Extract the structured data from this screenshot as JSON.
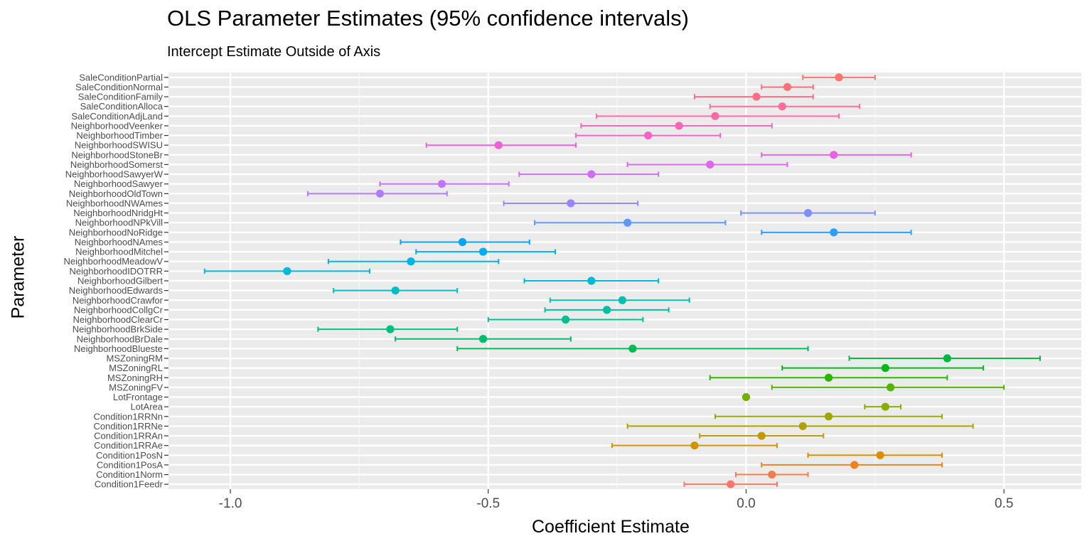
{
  "title": "OLS Parameter Estimates (95% confidence intervals)",
  "subtitle": "Intercept Estimate Outside of Axis",
  "chart_data": {
    "type": "errorbar",
    "title": "OLS Parameter Estimates (95% confidence intervals)",
    "subtitle": "Intercept Estimate Outside of Axis",
    "xlabel": "Coefficient Estimate",
    "ylabel": "Parameter",
    "xlim": [
      -1.12,
      0.65
    ],
    "xticks": [
      -1.0,
      -0.5,
      0.0,
      0.5
    ],
    "xtick_labels": [
      "-1.0",
      "-0.5",
      "0.0",
      "0.5"
    ],
    "grid": true,
    "legend": "none",
    "points": [
      {
        "name": "Condition1Feedr",
        "estimate": -0.03,
        "lower": -0.12,
        "upper": 0.06,
        "color": "#F8766D"
      },
      {
        "name": "Condition1Norm",
        "estimate": 0.05,
        "lower": -0.02,
        "upper": 0.12,
        "color": "#F07E4D"
      },
      {
        "name": "Condition1PosA",
        "estimate": 0.21,
        "lower": 0.03,
        "upper": 0.38,
        "color": "#E7861B"
      },
      {
        "name": "Condition1PosN",
        "estimate": 0.26,
        "lower": 0.12,
        "upper": 0.38,
        "color": "#DB8E00"
      },
      {
        "name": "Condition1RRAe",
        "estimate": -0.1,
        "lower": -0.26,
        "upper": 0.06,
        "color": "#CF9400"
      },
      {
        "name": "Condition1RRAn",
        "estimate": 0.03,
        "lower": -0.09,
        "upper": 0.15,
        "color": "#C09B00"
      },
      {
        "name": "Condition1RRNe",
        "estimate": 0.11,
        "lower": -0.23,
        "upper": 0.44,
        "color": "#AFA100"
      },
      {
        "name": "Condition1RRNn",
        "estimate": 0.16,
        "lower": -0.06,
        "upper": 0.38,
        "color": "#9DA700"
      },
      {
        "name": "LotArea",
        "estimate": 0.27,
        "lower": 0.23,
        "upper": 0.3,
        "color": "#89AC00"
      },
      {
        "name": "LotFrontage",
        "estimate": 0.0,
        "lower": 0.0,
        "upper": 0.0,
        "color": "#72B000"
      },
      {
        "name": "MSZoningFV",
        "estimate": 0.28,
        "lower": 0.05,
        "upper": 0.5,
        "color": "#56B400"
      },
      {
        "name": "MSZoningRH",
        "estimate": 0.16,
        "lower": -0.07,
        "upper": 0.39,
        "color": "#2DB600"
      },
      {
        "name": "MSZoningRL",
        "estimate": 0.27,
        "lower": 0.07,
        "upper": 0.46,
        "color": "#00B81B"
      },
      {
        "name": "MSZoningRM",
        "estimate": 0.39,
        "lower": 0.2,
        "upper": 0.57,
        "color": "#00BA3D"
      },
      {
        "name": "NeighborhoodBlueste",
        "estimate": -0.22,
        "lower": -0.56,
        "upper": 0.12,
        "color": "#00BC56"
      },
      {
        "name": "NeighborhoodBrDale",
        "estimate": -0.51,
        "lower": -0.68,
        "upper": -0.34,
        "color": "#00BE6C"
      },
      {
        "name": "NeighborhoodBrkSide",
        "estimate": -0.69,
        "lower": -0.83,
        "upper": -0.56,
        "color": "#00BF7F"
      },
      {
        "name": "NeighborhoodClearCr",
        "estimate": -0.35,
        "lower": -0.5,
        "upper": -0.2,
        "color": "#00C091"
      },
      {
        "name": "NeighborhoodCollgCr",
        "estimate": -0.27,
        "lower": -0.39,
        "upper": -0.15,
        "color": "#00C0A2"
      },
      {
        "name": "NeighborhoodCrawfor",
        "estimate": -0.24,
        "lower": -0.38,
        "upper": -0.11,
        "color": "#00BFB2"
      },
      {
        "name": "NeighborhoodEdwards",
        "estimate": -0.68,
        "lower": -0.8,
        "upper": -0.56,
        "color": "#00BDC1"
      },
      {
        "name": "NeighborhoodGilbert",
        "estimate": -0.3,
        "lower": -0.43,
        "upper": -0.17,
        "color": "#00BBCF"
      },
      {
        "name": "NeighborhoodIDOTRR",
        "estimate": -0.89,
        "lower": -1.05,
        "upper": -0.73,
        "color": "#00B7DC"
      },
      {
        "name": "NeighborhoodMeadowV",
        "estimate": -0.65,
        "lower": -0.81,
        "upper": -0.48,
        "color": "#00B2E7"
      },
      {
        "name": "NeighborhoodMitchel",
        "estimate": -0.51,
        "lower": -0.64,
        "upper": -0.37,
        "color": "#00ADF1"
      },
      {
        "name": "NeighborhoodNAmes",
        "estimate": -0.55,
        "lower": -0.67,
        "upper": -0.42,
        "color": "#00A6F9"
      },
      {
        "name": "NeighborhoodNoRidge",
        "estimate": 0.17,
        "lower": 0.03,
        "upper": 0.32,
        "color": "#2B9FFF"
      },
      {
        "name": "NeighborhoodNPkVill",
        "estimate": -0.23,
        "lower": -0.41,
        "upper": -0.04,
        "color": "#5E97FF"
      },
      {
        "name": "NeighborhoodNridgHt",
        "estimate": 0.12,
        "lower": -0.01,
        "upper": 0.25,
        "color": "#7F8EFF"
      },
      {
        "name": "NeighborhoodNWAmes",
        "estimate": -0.34,
        "lower": -0.47,
        "upper": -0.21,
        "color": "#9A85FF"
      },
      {
        "name": "NeighborhoodOldTown",
        "estimate": -0.71,
        "lower": -0.85,
        "upper": -0.58,
        "color": "#B07CFF"
      },
      {
        "name": "NeighborhoodSawyer",
        "estimate": -0.59,
        "lower": -0.71,
        "upper": -0.46,
        "color": "#C274FF"
      },
      {
        "name": "NeighborhoodSawyerW",
        "estimate": -0.3,
        "lower": -0.44,
        "upper": -0.17,
        "color": "#D26CFA"
      },
      {
        "name": "NeighborhoodSomerst",
        "estimate": -0.07,
        "lower": -0.23,
        "upper": 0.08,
        "color": "#DE66F0"
      },
      {
        "name": "NeighborhoodStoneBr",
        "estimate": 0.17,
        "lower": 0.03,
        "upper": 0.32,
        "color": "#E862E4"
      },
      {
        "name": "NeighborhoodSWISU",
        "estimate": -0.48,
        "lower": -0.62,
        "upper": -0.33,
        "color": "#F060D7"
      },
      {
        "name": "NeighborhoodTimber",
        "estimate": -0.19,
        "lower": -0.33,
        "upper": -0.05,
        "color": "#F662C8"
      },
      {
        "name": "NeighborhoodVeenker",
        "estimate": -0.13,
        "lower": -0.32,
        "upper": 0.05,
        "color": "#FA65B8"
      },
      {
        "name": "SaleConditionAdjLand",
        "estimate": -0.06,
        "lower": -0.29,
        "upper": 0.18,
        "color": "#FD69A7"
      },
      {
        "name": "SaleConditionAlloca",
        "estimate": 0.07,
        "lower": -0.07,
        "upper": 0.22,
        "color": "#FF6C96"
      },
      {
        "name": "SaleConditionFamily",
        "estimate": 0.02,
        "lower": -0.1,
        "upper": 0.13,
        "color": "#FF6E86"
      },
      {
        "name": "SaleConditionNormal",
        "estimate": 0.08,
        "lower": 0.03,
        "upper": 0.13,
        "color": "#FD7076"
      },
      {
        "name": "SaleConditionPartial",
        "estimate": 0.18,
        "lower": 0.11,
        "upper": 0.25,
        "color": "#F8766D"
      }
    ]
  }
}
